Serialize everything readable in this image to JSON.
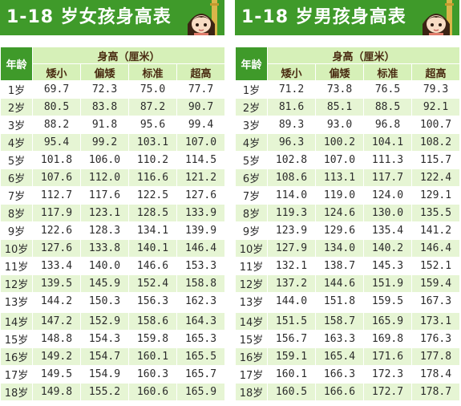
{
  "girls": {
    "title": "1-18 岁女孩身高表",
    "age_header": "年龄",
    "height_header": "身高（厘米）",
    "columns": [
      "矮小",
      "偏矮",
      "标准",
      "超高"
    ],
    "rows": [
      [
        "1岁",
        "69.7",
        "72.3",
        "75.0",
        "77.7"
      ],
      [
        "2岁",
        "80.5",
        "83.8",
        "87.2",
        "90.7"
      ],
      [
        "3岁",
        "88.2",
        "91.8",
        "95.6",
        "99.4"
      ],
      [
        "4岁",
        "95.4",
        "99.2",
        "103.1",
        "107.0"
      ],
      [
        "5岁",
        "101.8",
        "106.0",
        "110.2",
        "114.5"
      ],
      [
        "6岁",
        "107.6",
        "112.0",
        "116.6",
        "121.2"
      ],
      [
        "7岁",
        "112.7",
        "117.6",
        "122.5",
        "127.6"
      ],
      [
        "8岁",
        "117.9",
        "123.1",
        "128.5",
        "133.9"
      ],
      [
        "9岁",
        "122.6",
        "128.3",
        "134.1",
        "139.9"
      ],
      [
        "10岁",
        "127.6",
        "133.8",
        "140.1",
        "146.4"
      ],
      [
        "11岁",
        "133.4",
        "140.0",
        "146.6",
        "153.3"
      ],
      [
        "12岁",
        "139.5",
        "145.9",
        "152.4",
        "158.8"
      ],
      [
        "13岁",
        "144.2",
        "150.3",
        "156.3",
        "162.3"
      ],
      [
        "14岁",
        "147.2",
        "152.9",
        "158.6",
        "164.3"
      ],
      [
        "15岁",
        "148.8",
        "154.3",
        "159.8",
        "165.3"
      ],
      [
        "16岁",
        "149.2",
        "154.7",
        "160.1",
        "165.5"
      ],
      [
        "17岁",
        "149.5",
        "154.9",
        "160.3",
        "165.7"
      ],
      [
        "18岁",
        "149.8",
        "155.2",
        "160.6",
        "165.9"
      ]
    ]
  },
  "boys": {
    "title": "1-18 岁男孩身高表",
    "age_header": "年龄",
    "height_header": "身高（厘米）",
    "columns": [
      "矮小",
      "偏矮",
      "标准",
      "超高"
    ],
    "rows": [
      [
        "1岁",
        "71.2",
        "73.8",
        "76.5",
        "79.3"
      ],
      [
        "2岁",
        "81.6",
        "85.1",
        "88.5",
        "92.1"
      ],
      [
        "3岁",
        "89.3",
        "93.0",
        "96.8",
        "100.7"
      ],
      [
        "4岁",
        "96.3",
        "100.2",
        "104.1",
        "108.2"
      ],
      [
        "5岁",
        "102.8",
        "107.0",
        "111.3",
        "115.7"
      ],
      [
        "6岁",
        "108.6",
        "113.1",
        "117.7",
        "122.4"
      ],
      [
        "7岁",
        "114.0",
        "119.0",
        "124.0",
        "129.1"
      ],
      [
        "8岁",
        "119.3",
        "124.6",
        "130.0",
        "135.5"
      ],
      [
        "9岁",
        "123.9",
        "129.6",
        "135.4",
        "141.2"
      ],
      [
        "10岁",
        "127.9",
        "134.0",
        "140.2",
        "146.4"
      ],
      [
        "11岁",
        "132.1",
        "138.7",
        "145.3",
        "152.1"
      ],
      [
        "12岁",
        "137.2",
        "144.6",
        "151.9",
        "159.4"
      ],
      [
        "13岁",
        "144.0",
        "151.8",
        "159.5",
        "167.3"
      ],
      [
        "14岁",
        "151.5",
        "158.7",
        "165.9",
        "173.1"
      ],
      [
        "15岁",
        "156.7",
        "163.3",
        "169.8",
        "176.3"
      ],
      [
        "16岁",
        "159.1",
        "165.4",
        "171.6",
        "177.8"
      ],
      [
        "17岁",
        "160.1",
        "166.3",
        "172.3",
        "178.4"
      ],
      [
        "18岁",
        "160.5",
        "166.6",
        "172.7",
        "178.7"
      ]
    ]
  },
  "mascot_icons": {
    "girls": "girl-cartoon-icon",
    "boys": "girl-cartoon-icon"
  }
}
